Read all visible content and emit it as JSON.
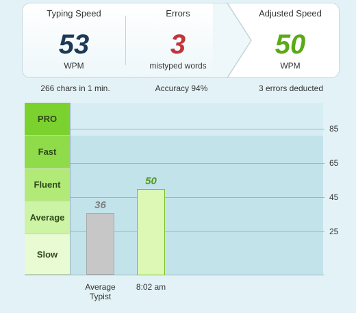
{
  "results": {
    "typing_speed": {
      "label": "Typing Speed",
      "value": "53",
      "unit": "WPM"
    },
    "errors": {
      "label": "Errors",
      "value": "3",
      "unit": "mistyped words"
    },
    "adjusted_speed": {
      "label": "Adjusted Speed",
      "value": "50",
      "unit": "WPM"
    }
  },
  "details": {
    "chars": "266 chars in 1 min.",
    "accuracy": "Accuracy 94%",
    "deducted": "3 errors deducted"
  },
  "colors": {
    "speed": "#1d3a55",
    "errors": "#c3343a",
    "adjusted": "#5aaa16"
  },
  "levels": [
    {
      "label": "PRO",
      "color": "#7bd12e"
    },
    {
      "label": "Fast",
      "color": "#8fdb4a"
    },
    {
      "label": "Fluent",
      "color": "#b2ea78"
    },
    {
      "label": "Average",
      "color": "#cdf3a4"
    },
    {
      "label": "Slow",
      "color": "#e8fbd2"
    }
  ],
  "chart_data": {
    "type": "bar",
    "categories": [
      "Average\nTypist",
      "8:02 am"
    ],
    "values": [
      36,
      50
    ],
    "value_labels": [
      "36",
      "50"
    ],
    "yticks": [
      25,
      45,
      65,
      85
    ],
    "ylim": [
      0,
      100
    ],
    "grid": true
  }
}
